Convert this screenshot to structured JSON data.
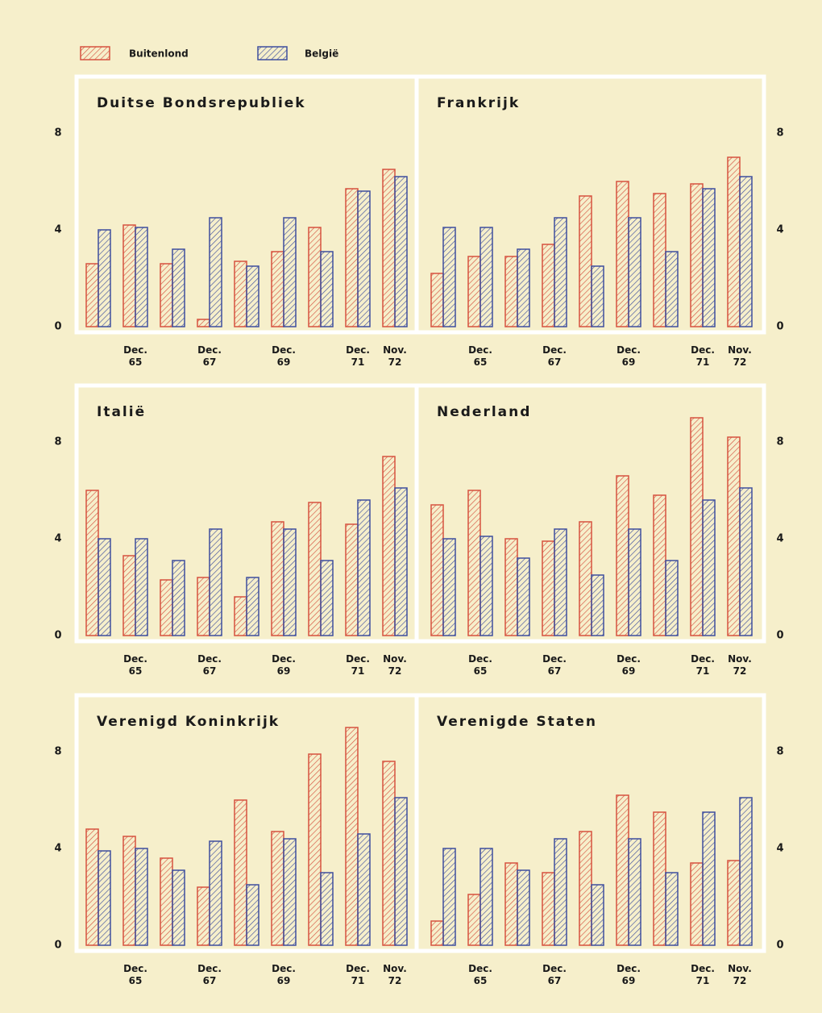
{
  "legend": {
    "series": [
      {
        "name": "Buitenlond",
        "color": "#d6523f"
      },
      {
        "name": "België",
        "color": "#3e4f9e"
      }
    ]
  },
  "chart_data": [
    {
      "type": "bar",
      "title": "Duitse Bondsrepubliek",
      "categories": [
        null,
        "Dec. 65",
        null,
        "Dec. 67",
        null,
        "Dec. 69",
        null,
        "Dec. 71",
        "Nov. 72"
      ],
      "series": [
        {
          "values": [
            2.6,
            4.2,
            2.6,
            0.3,
            2.7,
            3.1,
            4.1,
            5.7,
            6.5
          ]
        },
        {
          "values": [
            4.0,
            4.1,
            3.2,
            4.5,
            2.5,
            4.5,
            3.1,
            5.6,
            6.2
          ]
        }
      ],
      "ylim": [
        0,
        10
      ],
      "yticks": [
        0,
        4,
        8
      ]
    },
    {
      "type": "bar",
      "title": "Frankrijk",
      "categories": [
        null,
        "Dec. 65",
        null,
        "Dec. 67",
        null,
        "Dec. 69",
        null,
        "Dec. 71",
        "Nov. 72"
      ],
      "series": [
        {
          "values": [
            2.2,
            2.9,
            2.9,
            3.4,
            5.4,
            6.0,
            5.5,
            5.9,
            7.0
          ]
        },
        {
          "values": [
            4.1,
            4.1,
            3.2,
            4.5,
            2.5,
            4.5,
            3.1,
            5.7,
            6.2
          ]
        }
      ],
      "ylim": [
        0,
        10
      ],
      "yticks": [
        0,
        4,
        8
      ]
    },
    {
      "type": "bar",
      "title": "Italië",
      "categories": [
        null,
        "Dec. 65",
        null,
        "Dec. 67",
        null,
        "Dec. 69",
        null,
        "Dec. 71",
        "Nov. 72"
      ],
      "series": [
        {
          "values": [
            6.0,
            3.3,
            2.3,
            2.4,
            1.6,
            4.7,
            5.5,
            4.6,
            7.4
          ]
        },
        {
          "values": [
            4.0,
            4.0,
            3.1,
            4.4,
            2.4,
            4.4,
            3.1,
            5.6,
            6.1
          ]
        }
      ],
      "ylim": [
        0,
        10
      ],
      "yticks": [
        0,
        4,
        8
      ]
    },
    {
      "type": "bar",
      "title": "Nederland",
      "categories": [
        null,
        "Dec. 65",
        null,
        "Dec. 67",
        null,
        "Dec. 69",
        null,
        "Dec. 71",
        "Nov. 72"
      ],
      "series": [
        {
          "values": [
            5.4,
            6.0,
            4.0,
            3.9,
            4.7,
            6.6,
            5.8,
            9.0,
            8.2
          ]
        },
        {
          "values": [
            4.0,
            4.1,
            3.2,
            4.4,
            2.5,
            4.4,
            3.1,
            5.6,
            6.1
          ]
        }
      ],
      "ylim": [
        0,
        10
      ],
      "yticks": [
        0,
        4,
        8
      ]
    },
    {
      "type": "bar",
      "title": "Verenigd Koninkrijk",
      "categories": [
        null,
        "Dec. 65",
        null,
        "Dec. 67",
        null,
        "Dec. 69",
        null,
        "Dec. 71",
        "Nov. 72"
      ],
      "series": [
        {
          "values": [
            4.8,
            4.5,
            3.6,
            2.4,
            6.0,
            4.7,
            7.9,
            9.0,
            7.6
          ]
        },
        {
          "values": [
            3.9,
            4.0,
            3.1,
            4.3,
            2.5,
            4.4,
            3.0,
            4.6,
            6.1
          ]
        }
      ],
      "ylim": [
        0,
        10
      ],
      "yticks": [
        0,
        4,
        8
      ]
    },
    {
      "type": "bar",
      "title": "Verenigde Staten",
      "categories": [
        null,
        "Dec. 65",
        null,
        "Dec. 67",
        null,
        "Dec. 69",
        null,
        "Dec. 71",
        "Nov. 72"
      ],
      "series": [
        {
          "values": [
            1.0,
            2.1,
            3.4,
            3.0,
            4.7,
            6.2,
            5.5,
            3.4,
            3.5
          ]
        },
        {
          "values": [
            4.0,
            4.0,
            3.1,
            4.4,
            2.5,
            4.4,
            3.0,
            5.5,
            6.1
          ]
        }
      ],
      "ylim": [
        0,
        10
      ],
      "yticks": [
        0,
        4,
        8
      ]
    }
  ]
}
